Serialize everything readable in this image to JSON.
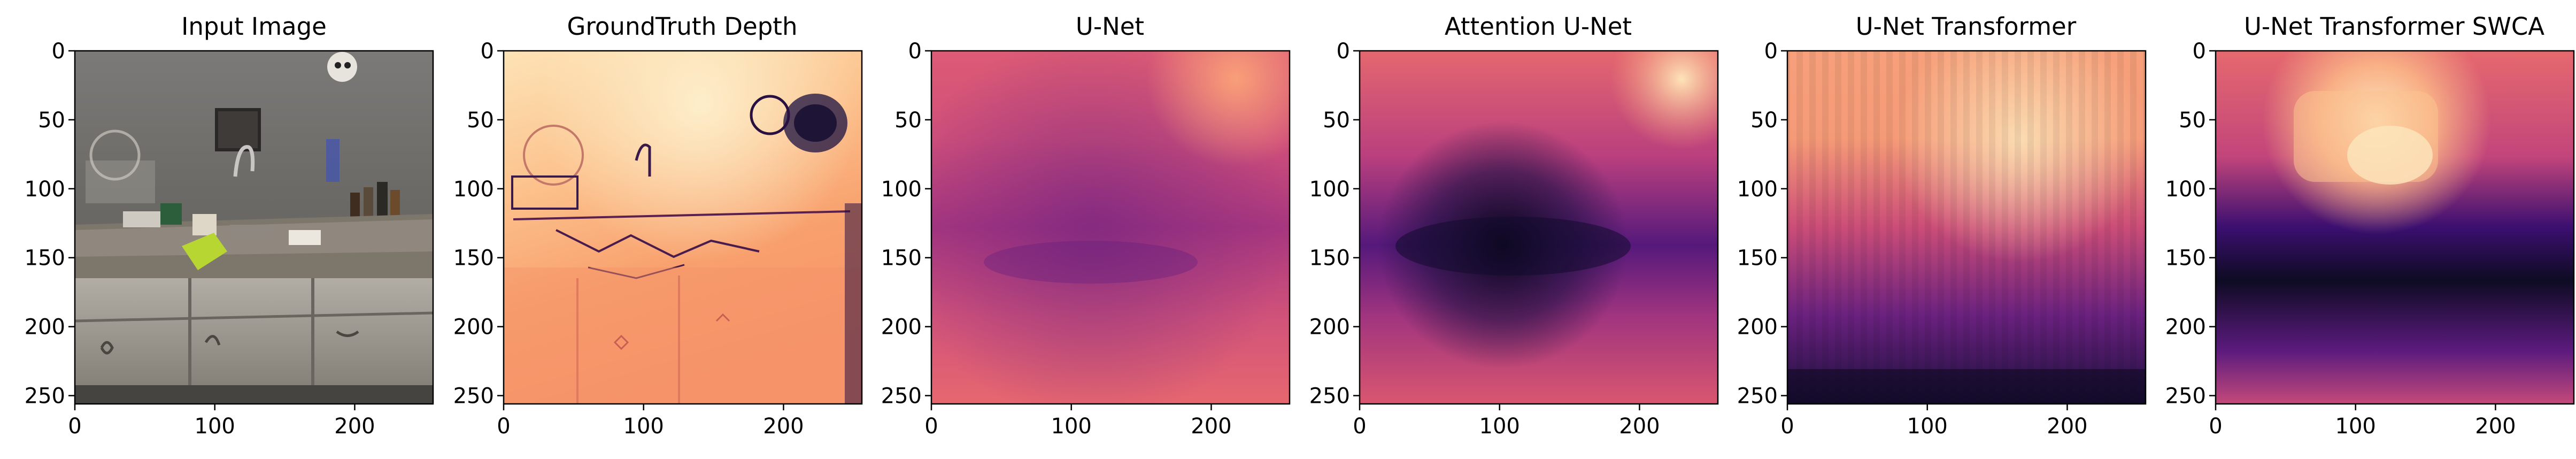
{
  "figure": {
    "panels": [
      {
        "title": "Input Image",
        "kind": "rgb-photo",
        "x_ticks": [
          "0",
          "100",
          "200"
        ],
        "y_ticks": [
          "0",
          "50",
          "100",
          "150",
          "200",
          "250"
        ],
        "x_range": [
          0,
          256
        ],
        "y_range": [
          0,
          256
        ]
      },
      {
        "title": "GroundTruth Depth",
        "kind": "depth-map",
        "colormap": "magma",
        "x_ticks": [
          "0",
          "100",
          "200"
        ],
        "y_ticks": [
          "0",
          "50",
          "100",
          "150",
          "200",
          "250"
        ],
        "x_range": [
          0,
          256
        ],
        "y_range": [
          0,
          256
        ]
      },
      {
        "title": "U-Net",
        "kind": "depth-map",
        "colormap": "magma",
        "x_ticks": [
          "0",
          "100",
          "200"
        ],
        "y_ticks": [
          "0",
          "50",
          "100",
          "150",
          "200",
          "250"
        ],
        "x_range": [
          0,
          256
        ],
        "y_range": [
          0,
          256
        ]
      },
      {
        "title": "Attention U-Net",
        "kind": "depth-map",
        "colormap": "magma",
        "x_ticks": [
          "0",
          "100",
          "200"
        ],
        "y_ticks": [
          "0",
          "50",
          "100",
          "150",
          "200",
          "250"
        ],
        "x_range": [
          0,
          256
        ],
        "y_range": [
          0,
          256
        ]
      },
      {
        "title": "U-Net Transformer",
        "kind": "depth-map",
        "colormap": "magma",
        "x_ticks": [
          "0",
          "100",
          "200"
        ],
        "y_ticks": [
          "0",
          "50",
          "100",
          "150",
          "200",
          "250"
        ],
        "x_range": [
          0,
          256
        ],
        "y_range": [
          0,
          256
        ]
      },
      {
        "title": "U-Net Transformer SWCA",
        "kind": "depth-map",
        "colormap": "magma",
        "x_ticks": [
          "0",
          "100",
          "200"
        ],
        "y_ticks": [
          "0",
          "50",
          "100",
          "150",
          "200",
          "250"
        ],
        "x_range": [
          0,
          256
        ],
        "y_range": [
          0,
          256
        ]
      }
    ]
  }
}
